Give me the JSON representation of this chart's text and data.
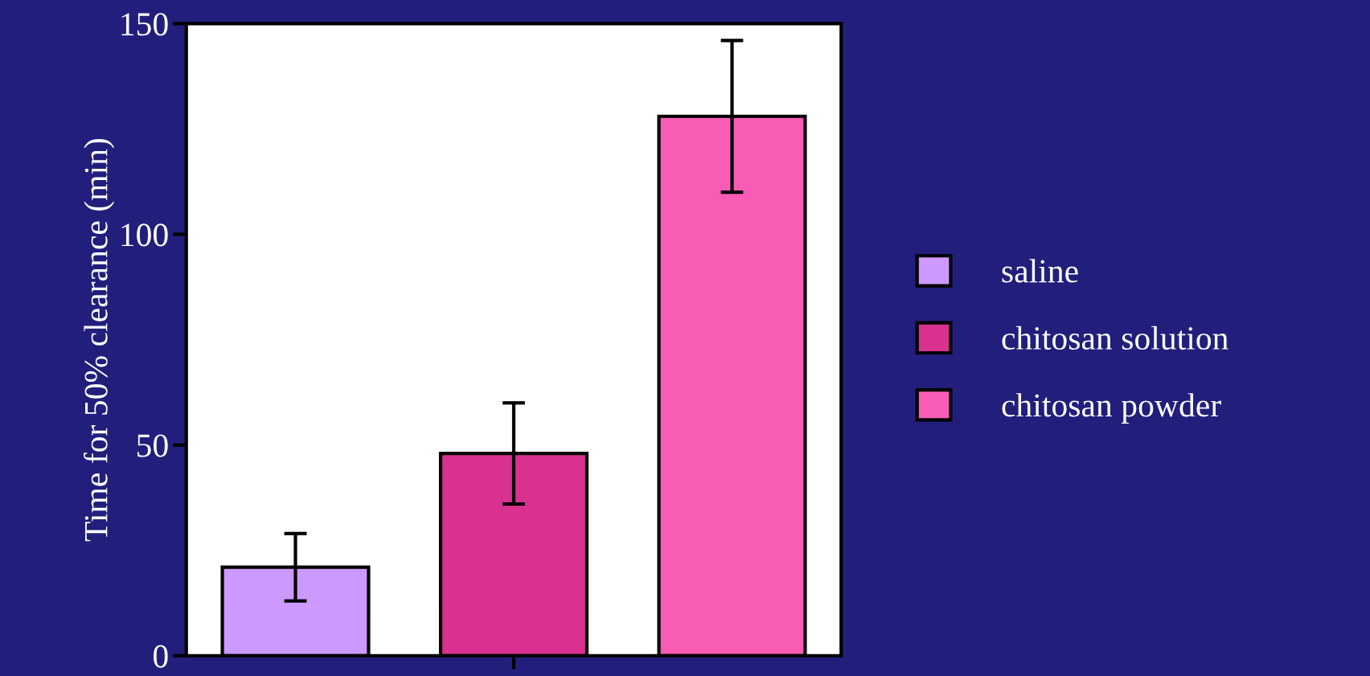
{
  "chart_data": {
    "type": "bar",
    "ylabel": "Time for 50% clearance (min)",
    "categories": [
      null,
      null,
      null
    ],
    "series": [
      {
        "name": "saline",
        "color": "#cc99ff",
        "values": [
          21,
          null,
          null
        ],
        "errors": [
          8,
          null,
          null
        ]
      },
      {
        "name": "chitosan solution",
        "color": "#d93190",
        "values": [
          null,
          48,
          null
        ],
        "errors": [
          null,
          12,
          null
        ]
      },
      {
        "name": "chitosan powder",
        "color": "#f95cb5",
        "values": [
          null,
          null,
          128
        ],
        "errors": [
          null,
          null,
          18
        ]
      }
    ],
    "ylim": [
      0,
      150
    ],
    "yticks": [
      0,
      50,
      100,
      150
    ],
    "grid": false,
    "legend": "right",
    "tick_labels": "y"
  }
}
